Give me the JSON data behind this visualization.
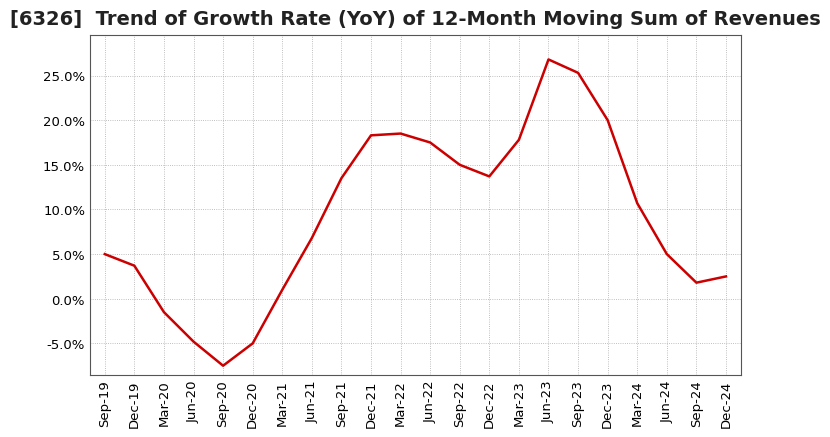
{
  "title": "[6326]  Trend of Growth Rate (YoY) of 12-Month Moving Sum of Revenues",
  "line_color": "#cc0000",
  "background_color": "#ffffff",
  "grid_color": "#aaaaaa",
  "ylim": [
    -0.085,
    0.295
  ],
  "yticks": [
    -0.05,
    0.0,
    0.05,
    0.1,
    0.15,
    0.2,
    0.25
  ],
  "x_labels": [
    "Sep-19",
    "Dec-19",
    "Mar-20",
    "Jun-20",
    "Sep-20",
    "Dec-20",
    "Mar-21",
    "Jun-21",
    "Sep-21",
    "Dec-21",
    "Mar-22",
    "Jun-22",
    "Sep-22",
    "Dec-22",
    "Mar-23",
    "Jun-23",
    "Sep-23",
    "Dec-23",
    "Mar-24",
    "Jun-24",
    "Sep-24",
    "Dec-24"
  ],
  "y_values": [
    0.05,
    0.037,
    -0.015,
    -0.048,
    -0.075,
    -0.05,
    0.01,
    0.068,
    0.135,
    0.183,
    0.185,
    0.175,
    0.15,
    0.137,
    0.178,
    0.268,
    0.253,
    0.2,
    0.107,
    0.05,
    0.018,
    0.025
  ],
  "title_fontsize": 14,
  "tick_fontsize": 9.5
}
